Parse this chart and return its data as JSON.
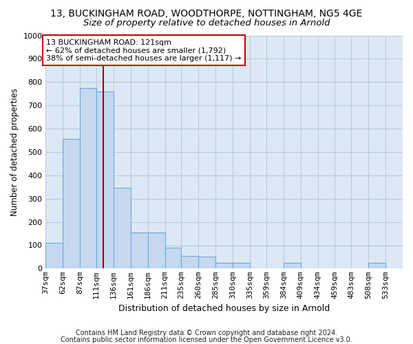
{
  "title1": "13, BUCKINGHAM ROAD, WOODTHORPE, NOTTINGHAM, NG5 4GE",
  "title2": "Size of property relative to detached houses in Arnold",
  "xlabel": "Distribution of detached houses by size in Arnold",
  "ylabel": "Number of detached properties",
  "annotation_line1": "13 BUCKINGHAM ROAD: 121sqm",
  "annotation_line2": "← 62% of detached houses are smaller (1,792)",
  "annotation_line3": "38% of semi-detached houses are larger (1,117) →",
  "footer1": "Contains HM Land Registry data © Crown copyright and database right 2024.",
  "footer2": "Contains public sector information licensed under the Open Government Licence v3.0.",
  "red_line_x": 121,
  "categories": [
    "37sqm",
    "62sqm",
    "87sqm",
    "111sqm",
    "136sqm",
    "161sqm",
    "186sqm",
    "211sqm",
    "235sqm",
    "260sqm",
    "285sqm",
    "310sqm",
    "335sqm",
    "359sqm",
    "384sqm",
    "409sqm",
    "434sqm",
    "459sqm",
    "483sqm",
    "508sqm",
    "533sqm"
  ],
  "bin_edges": [
    37,
    62,
    87,
    111,
    136,
    161,
    186,
    211,
    235,
    260,
    285,
    310,
    335,
    359,
    384,
    409,
    434,
    459,
    483,
    508,
    533,
    558
  ],
  "values": [
    110,
    555,
    775,
    760,
    345,
    155,
    155,
    90,
    55,
    50,
    25,
    25,
    0,
    0,
    25,
    0,
    0,
    0,
    0,
    25,
    0
  ],
  "bar_color": "#c5d8ee",
  "bar_edge_color": "#6aaad4",
  "red_line_color": "#aa0000",
  "bg_color": "#dce8f5",
  "fig_bg_color": "#ffffff",
  "grid_color": "#b8cce0",
  "ylim": [
    0,
    1000
  ],
  "annotation_box_edge_color": "#cc0000",
  "title1_fontsize": 10,
  "title2_fontsize": 9.5,
  "ylabel_fontsize": 8.5,
  "xlabel_fontsize": 9,
  "tick_fontsize": 8,
  "annot_fontsize": 8,
  "footer_fontsize": 7
}
